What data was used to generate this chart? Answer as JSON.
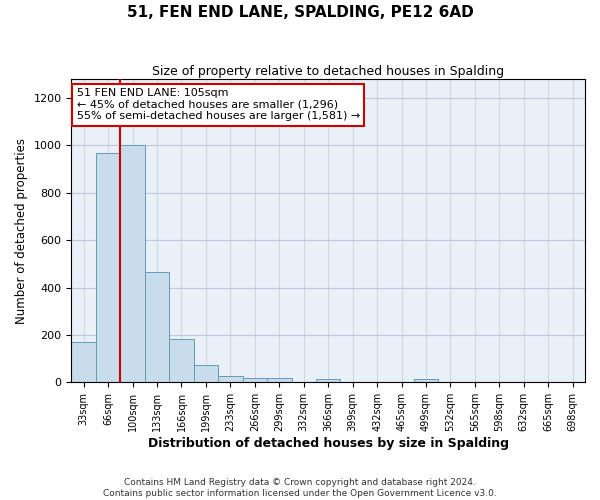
{
  "title": "51, FEN END LANE, SPALDING, PE12 6AD",
  "subtitle": "Size of property relative to detached houses in Spalding",
  "xlabel": "Distribution of detached houses by size in Spalding",
  "ylabel": "Number of detached properties",
  "bin_labels": [
    "33sqm",
    "66sqm",
    "100sqm",
    "133sqm",
    "166sqm",
    "199sqm",
    "233sqm",
    "266sqm",
    "299sqm",
    "332sqm",
    "366sqm",
    "399sqm",
    "432sqm",
    "465sqm",
    "499sqm",
    "532sqm",
    "565sqm",
    "598sqm",
    "632sqm",
    "665sqm",
    "698sqm"
  ],
  "bar_heights": [
    170,
    970,
    1000,
    465,
    185,
    75,
    25,
    20,
    20,
    0,
    15,
    0,
    0,
    0,
    15,
    0,
    0,
    0,
    0,
    0,
    0
  ],
  "bar_color": "#c8dcec",
  "bar_edge_color": "#6699bb",
  "red_line_bin": 2,
  "red_line_color": "#cc0000",
  "annotation_title": "51 FEN END LANE: 105sqm",
  "annotation_line1": "← 45% of detached houses are smaller (1,296)",
  "annotation_line2": "55% of semi-detached houses are larger (1,581) →",
  "annotation_box_edge": "#cc0000",
  "ylim": [
    0,
    1280
  ],
  "yticks": [
    0,
    200,
    400,
    600,
    800,
    1000,
    1200
  ],
  "footer1": "Contains HM Land Registry data © Crown copyright and database right 2024.",
  "footer2": "Contains public sector information licensed under the Open Government Licence v3.0.",
  "bg_color": "#ffffff",
  "plot_bg_color": "#e8f0f8",
  "grid_color": "#c0c8d8"
}
